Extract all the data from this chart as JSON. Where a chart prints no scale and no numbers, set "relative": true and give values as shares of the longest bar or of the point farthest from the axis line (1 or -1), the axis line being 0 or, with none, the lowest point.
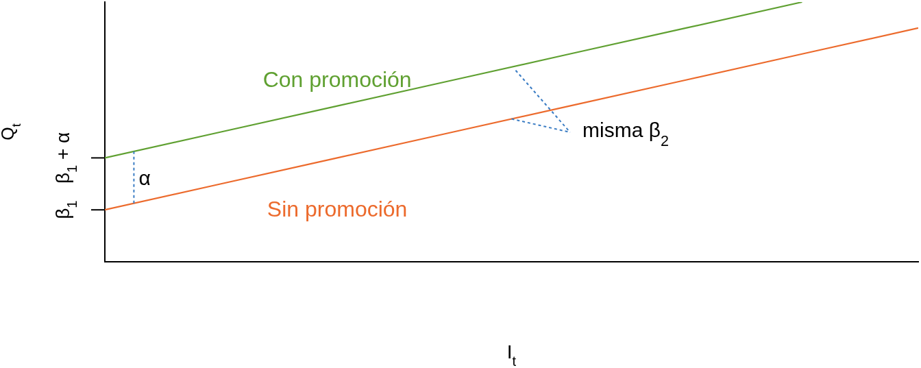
{
  "chart_data": {
    "type": "line",
    "relative": true,
    "xlabel": "I$_{t}$",
    "ylabel": "Q$_{t}$",
    "categories": [
      null,
      null,
      null,
      null,
      null,
      null,
      null,
      null
    ],
    "series": [
      {
        "name": "Con promoción",
        "color": "#5fa031",
        "values": [
          0.4,
          0.5,
          0.6,
          0.7,
          0.8,
          0.9,
          1.0,
          null
        ]
      },
      {
        "name": "Sin promoción",
        "color": "#ec6a2c",
        "values": [
          0.2,
          0.3,
          0.4,
          0.5,
          0.6,
          0.7,
          0.8,
          0.9
        ]
      }
    ],
    "annotations": [
      "β$_{1}$",
      "β$_{1}$ + α",
      "α",
      "misma β$_{2}$"
    ]
  }
}
